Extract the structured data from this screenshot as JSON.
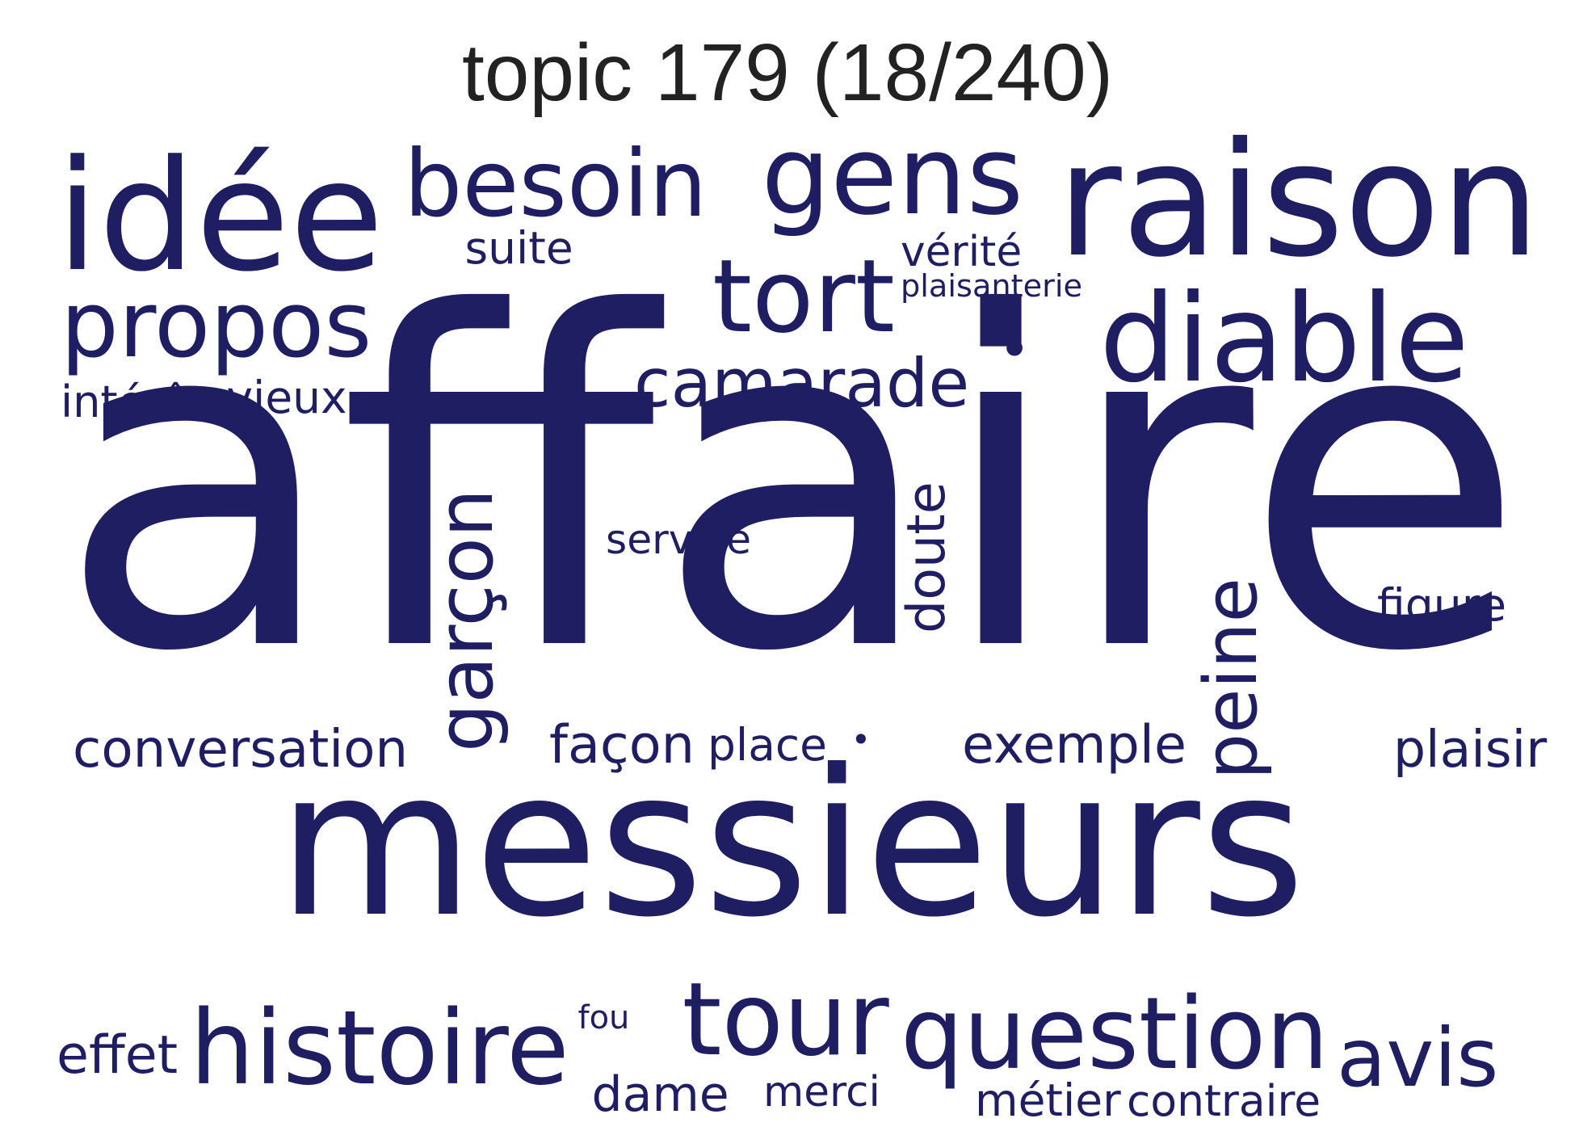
{
  "title": "topic 179 (18/240)",
  "colors": {
    "word": "#201e63",
    "title": "#222222",
    "background": "#ffffff"
  },
  "words": [
    {
      "text": "affaire",
      "weight": 1.0,
      "orientation": "horizontal"
    },
    {
      "text": "messieurs",
      "weight": 0.9,
      "orientation": "horizontal"
    },
    {
      "text": "raison",
      "weight": 0.55,
      "orientation": "horizontal"
    },
    {
      "text": "idée",
      "weight": 0.5,
      "orientation": "horizontal"
    },
    {
      "text": "gens",
      "weight": 0.45,
      "orientation": "horizontal"
    },
    {
      "text": "diable",
      "weight": 0.45,
      "orientation": "horizontal"
    },
    {
      "text": "question",
      "weight": 0.4,
      "orientation": "horizontal"
    },
    {
      "text": "tour",
      "weight": 0.4,
      "orientation": "horizontal"
    },
    {
      "text": "histoire",
      "weight": 0.38,
      "orientation": "horizontal"
    },
    {
      "text": "tort",
      "weight": 0.35,
      "orientation": "horizontal"
    },
    {
      "text": "besoin",
      "weight": 0.34,
      "orientation": "horizontal"
    },
    {
      "text": "propos",
      "weight": 0.32,
      "orientation": "horizontal"
    },
    {
      "text": "avis",
      "weight": 0.28,
      "orientation": "horizontal"
    },
    {
      "text": "garçon",
      "weight": 0.27,
      "orientation": "vertical"
    },
    {
      "text": "peine",
      "weight": 0.26,
      "orientation": "vertical"
    },
    {
      "text": "camarade",
      "weight": 0.25,
      "orientation": "horizontal"
    },
    {
      "text": "façon",
      "weight": 0.2,
      "orientation": "horizontal"
    },
    {
      "text": "exemple",
      "weight": 0.19,
      "orientation": "horizontal"
    },
    {
      "text": "conversation",
      "weight": 0.19,
      "orientation": "horizontal"
    },
    {
      "text": "doute",
      "weight": 0.17,
      "orientation": "vertical"
    },
    {
      "text": "place",
      "weight": 0.16,
      "orientation": "horizontal"
    },
    {
      "text": "effet",
      "weight": 0.16,
      "orientation": "horizontal"
    },
    {
      "text": "dame",
      "weight": 0.16,
      "orientation": "horizontal"
    },
    {
      "text": "plaisir",
      "weight": 0.15,
      "orientation": "horizontal"
    },
    {
      "text": "métier",
      "weight": 0.15,
      "orientation": "horizontal"
    },
    {
      "text": "vieux",
      "weight": 0.15,
      "orientation": "horizontal"
    },
    {
      "text": "figure",
      "weight": 0.14,
      "orientation": "horizontal"
    },
    {
      "text": "contraire",
      "weight": 0.14,
      "orientation": "horizontal"
    },
    {
      "text": "intérêt",
      "weight": 0.14,
      "orientation": "horizontal"
    },
    {
      "text": "suite",
      "weight": 0.14,
      "orientation": "horizontal"
    },
    {
      "text": "vérité",
      "weight": 0.13,
      "orientation": "horizontal"
    },
    {
      "text": "merci",
      "weight": 0.13,
      "orientation": "horizontal"
    },
    {
      "text": "service",
      "weight": 0.12,
      "orientation": "horizontal"
    },
    {
      "text": "fou",
      "weight": 0.1,
      "orientation": "horizontal"
    },
    {
      "text": "plaisanterie",
      "weight": 0.1,
      "orientation": "horizontal"
    },
    {
      "text": "•",
      "weight": 0.2,
      "orientation": "horizontal"
    },
    {
      "text": "•",
      "weight": 0.1,
      "orientation": "horizontal"
    }
  ]
}
